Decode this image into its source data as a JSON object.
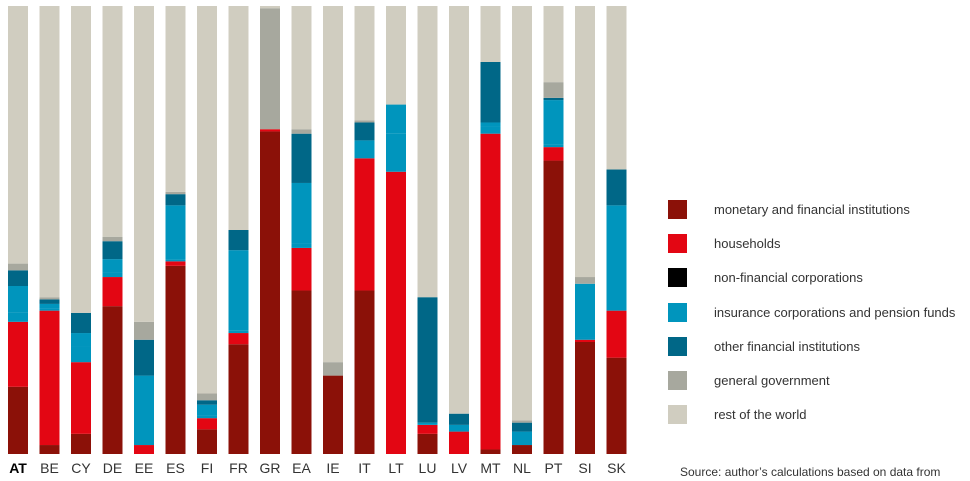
{
  "chart_data": {
    "type": "stacked-bar",
    "orientation": "vertical",
    "stacking": "percent",
    "ylim": [
      0,
      100
    ],
    "grid": false,
    "legend_position": "right",
    "highlight_category": "AT",
    "categories": [
      "AT",
      "BE",
      "CY",
      "DE",
      "EE",
      "ES",
      "FI",
      "FR",
      "GR",
      "EA",
      "IE",
      "IT",
      "LT",
      "LU",
      "LV",
      "MT",
      "NL",
      "PT",
      "SI",
      "SK"
    ],
    "series": [
      {
        "name": "monetary and financial institutions",
        "color": "#8b1108",
        "values": [
          15,
          2,
          4.5,
          33,
          0,
          42,
          5.5,
          24.5,
          72,
          36.5,
          17.5,
          36.5,
          0,
          4.5,
          0,
          1,
          2,
          65.5,
          25,
          21.5
        ]
      },
      {
        "name": "households",
        "color": "#e30613",
        "values": [
          14.5,
          30,
          16,
          6.5,
          2,
          1,
          2.5,
          2.5,
          0.5,
          9.5,
          0,
          29.5,
          63,
          2,
          5,
          70.5,
          0,
          3,
          0.5,
          10.5
        ]
      },
      {
        "name": "non-financial corporations",
        "color": "#000000",
        "values": [
          0,
          0,
          0,
          0,
          0,
          0,
          0,
          0,
          0,
          0,
          0,
          0,
          0,
          0,
          0,
          0,
          0,
          0,
          0,
          0
        ]
      },
      {
        "name": "insurance corporations and pension funds",
        "color": "#0095bd",
        "values": [
          2,
          0.5,
          3.5,
          1,
          15.5,
          0.5,
          0.5,
          0.5,
          0,
          1,
          0,
          0,
          8.5,
          0.5,
          1.5,
          1.5,
          3,
          0.5,
          0.5,
          0
        ]
      },
      {
        "name": "insurance corporations and pension funds",
        "color": "#0095bd",
        "values": [
          6,
          1,
          3,
          3,
          0,
          12,
          2.5,
          18,
          0,
          13.5,
          0,
          4,
          6.5,
          0,
          0,
          1,
          0,
          10,
          12,
          23.5
        ]
      },
      {
        "name": "other financial institutions",
        "color": "#006787",
        "values": [
          3.5,
          1,
          4.5,
          4,
          8,
          2.5,
          1,
          4.5,
          0,
          11,
          0,
          4,
          0,
          28,
          2.5,
          13.5,
          2,
          0.5,
          0,
          8
        ]
      },
      {
        "name": "general government",
        "color": "#a7a89e",
        "values": [
          1.5,
          0.5,
          0,
          1,
          4,
          0.5,
          1.5,
          0,
          27,
          1,
          3,
          0.5,
          0,
          0,
          0,
          0,
          0.5,
          3.5,
          1.5,
          0
        ]
      },
      {
        "name": "rest of the world",
        "color": "#d0cdc0",
        "values": [
          57.5,
          65,
          68.5,
          51.5,
          70.5,
          41.5,
          86.5,
          50,
          0.5,
          27.5,
          79.5,
          25.5,
          22,
          65,
          91,
          12.5,
          92.5,
          17,
          60.5,
          36.5
        ]
      }
    ]
  },
  "legend": {
    "items": [
      {
        "label": "monetary and financial institutions",
        "color": "#8b1108"
      },
      {
        "label": "households",
        "color": "#e30613"
      },
      {
        "label": "non-financial corporations",
        "color": "#000000"
      },
      {
        "label": "insurance corporations and pension funds",
        "color": "#0095bd"
      },
      {
        "label": "other financial institutions",
        "color": "#006787"
      },
      {
        "label": "general government",
        "color": "#a7a89e"
      },
      {
        "label": "rest of the world",
        "color": "#d0cdc0"
      }
    ]
  },
  "source": "Source: author’s calculations based on data from"
}
